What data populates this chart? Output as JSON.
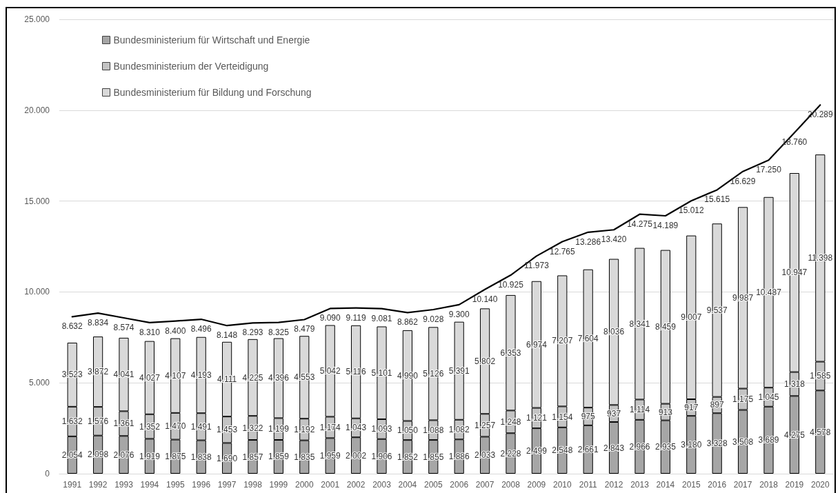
{
  "chart_data": {
    "type": "bar",
    "stacked": true,
    "categories": [
      "1991",
      "1992",
      "1993",
      "1994",
      "1995",
      "1996",
      "1997",
      "1998",
      "1999",
      "2000",
      "2001",
      "2002",
      "2003",
      "2004",
      "2005",
      "2006",
      "2007",
      "2008",
      "2009",
      "2010",
      "2011",
      "2012",
      "2013",
      "2014",
      "2015",
      "2016",
      "2017",
      "2018",
      "2019",
      "2020"
    ],
    "ylim": [
      0,
      25000
    ],
    "yticks": [
      0,
      {
        "value": 5000,
        "label": "5.000"
      },
      {
        "value": 10000,
        "label": "10.000"
      },
      {
        "value": 15000,
        "label": "15.000"
      },
      {
        "value": 20000,
        "label": "20.000"
      },
      {
        "value": 25000,
        "label": "25.000"
      }
    ],
    "grid": "y",
    "legend": "top left",
    "marker": "none",
    "series": [
      {
        "name": "Bundesministerium für Wirtschaft und Energie",
        "color": "#a6a6a6",
        "values": [
          2054,
          2098,
          2076,
          1919,
          1875,
          1838,
          1690,
          1857,
          1859,
          1835,
          1959,
          2002,
          1906,
          1852,
          1855,
          1886,
          2033,
          2228,
          2499,
          2548,
          2661,
          2843,
          2966,
          2935,
          3180,
          3328,
          3508,
          3689,
          4275,
          4578
        ],
        "value_labels": [
          "2.054",
          "2.098",
          "2.076",
          "1.919",
          "1.875",
          "1.838",
          "1.690",
          "1.857",
          "1.859",
          "1.835",
          "1.959",
          "2.002",
          "1.906",
          "1.852",
          "1.855",
          "1.886",
          "2.033",
          "2.228",
          "2.499",
          "2.548",
          "2.661",
          "2.843",
          "2.966",
          "2.935",
          "3.180",
          "3.328",
          "3.508",
          "3.689",
          "4.275",
          "4.578"
        ]
      },
      {
        "name": "Bundesministerium der Verteidigung",
        "color": "#c4c4c4",
        "values": [
          1632,
          1576,
          1361,
          1352,
          1470,
          1491,
          1453,
          1322,
          1199,
          1192,
          1174,
          1043,
          1093,
          1050,
          1088,
          1082,
          1257,
          1248,
          1121,
          1154,
          975,
          937,
          1114,
          913,
          917,
          897,
          1175,
          1045,
          1318,
          1585
        ],
        "value_labels": [
          "1.632",
          "1.576",
          "1.361",
          "1.352",
          "1.470",
          "1.491",
          "1.453",
          "1.322",
          "1.199",
          "1.192",
          "1.174",
          "1.043",
          "1.093",
          "1.050",
          "1.088",
          "1.082",
          "1.257",
          "1.248",
          "1.121",
          "1.154",
          "975",
          "937",
          "1.114",
          "913",
          "917",
          "897",
          "1.175",
          "1.045",
          "1.318",
          "1.585"
        ]
      },
      {
        "name": "Bundesministerium für Bildung und Forschung",
        "color": "#d9d9d9",
        "values": [
          3523,
          3872,
          4041,
          4027,
          4107,
          4193,
          4111,
          4225,
          4396,
          4553,
          5042,
          5116,
          5101,
          4990,
          5126,
          5391,
          5802,
          6353,
          6974,
          7207,
          7604,
          8036,
          8341,
          8459,
          9007,
          9537,
          9987,
          10487,
          10947,
          11398
        ],
        "value_labels": [
          "3.523",
          "3.872",
          "4.041",
          "4.027",
          "4.107",
          "4.193",
          "4.111",
          "4.225",
          "4.396",
          "4.553",
          "5.042",
          "5.116",
          "5.101",
          "4.990",
          "5.126",
          "5.391",
          "5.802",
          "6.353",
          "6.974",
          "7.207",
          "7.604",
          "8.036",
          "8.341",
          "8.459",
          "9.007",
          "9.537",
          "9.987",
          "10.487",
          "10.947",
          "11.398"
        ]
      },
      {
        "type": "line",
        "color": "#000000",
        "values": [
          8632,
          8834,
          8574,
          8310,
          8400,
          8496,
          8148,
          8293,
          8325,
          8479,
          9090,
          9119,
          9081,
          8862,
          9028,
          9300,
          10140,
          10925,
          11973,
          12765,
          13286,
          13420,
          14275,
          14189,
          15012,
          15615,
          16629,
          17250,
          18760,
          20289
        ],
        "value_labels": [
          "8.632",
          "8.834",
          "8.574",
          "8.310",
          "8.400",
          "8.496",
          "8.148",
          "8.293",
          "8.325",
          "8.479",
          "9.090",
          "9.119",
          "9.081",
          "8.862",
          "9.028",
          "9.300",
          "10.140",
          "10.925",
          "11.973",
          "12.765",
          "13.286",
          "13.420",
          "14.275",
          "14.189",
          "15.012",
          "15.615",
          "16.629",
          "17.250",
          "18.760",
          "20.289"
        ]
      }
    ]
  }
}
